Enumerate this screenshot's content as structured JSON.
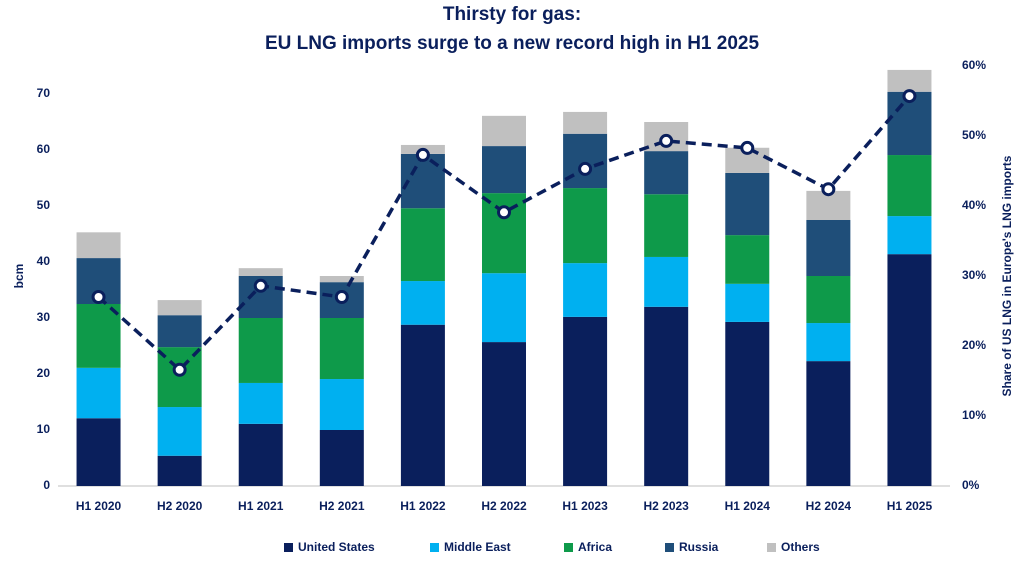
{
  "chart_data": {
    "type": "stacked_bar_line",
    "title": "Thirsty for gas:",
    "subtitle": "EU LNG imports surge to a new record high in H1 2025",
    "y_label": "bcm",
    "y2_label": "Share of US LNG in Europe's LNG imports",
    "categories": [
      "H1 2020",
      "H2 2020",
      "H1 2021",
      "H2 2021",
      "H1 2022",
      "H2 2022",
      "H1 2023",
      "H2 2023",
      "H1 2024",
      "H2 2024",
      "H1 2025"
    ],
    "series": [
      {
        "name": "United States",
        "color": "#0a1f5c",
        "values": [
          12.1,
          5.4,
          11.1,
          10.0,
          28.8,
          25.7,
          30.2,
          32.0,
          29.3,
          22.3,
          41.4
        ]
      },
      {
        "name": "Middle East",
        "color": "#00b0f0",
        "values": [
          9.0,
          8.7,
          7.3,
          9.1,
          7.8,
          12.3,
          9.6,
          8.9,
          6.8,
          6.8,
          6.8
        ]
      },
      {
        "name": "Africa",
        "color": "#0e9a4a",
        "values": [
          11.4,
          10.7,
          11.6,
          10.9,
          13.0,
          14.3,
          13.4,
          11.2,
          8.7,
          8.4,
          10.9
        ]
      },
      {
        "name": "Russia",
        "color": "#1f4e79",
        "values": [
          8.2,
          5.7,
          7.5,
          6.4,
          9.7,
          8.4,
          9.7,
          7.7,
          11.1,
          10.0,
          11.3
        ]
      },
      {
        "name": "Others",
        "color": "#c0c0c0",
        "values": [
          4.6,
          2.7,
          1.4,
          1.1,
          1.6,
          5.4,
          3.9,
          5.2,
          4.5,
          5.2,
          3.9
        ]
      }
    ],
    "line": {
      "color": "#0a1f5c",
      "axis": "y2",
      "values": [
        27.0,
        16.6,
        28.6,
        27.0,
        47.3,
        39.1,
        45.3,
        49.3,
        48.3,
        42.4,
        55.7
      ]
    },
    "ylim": [
      0,
      75
    ],
    "yticks": [
      0,
      10,
      20,
      30,
      40,
      50,
      60,
      70
    ],
    "y2lim": [
      0,
      60
    ],
    "y2ticks": [
      {
        "value": 0,
        "label": "0%"
      },
      {
        "value": 10,
        "label": "10%"
      },
      {
        "value": 20,
        "label": "20%"
      },
      {
        "value": 30,
        "label": "30%"
      },
      {
        "value": 40,
        "label": "40%"
      },
      {
        "value": 50,
        "label": "50%"
      },
      {
        "value": 60,
        "label": "60%"
      }
    ],
    "grid": false,
    "legend": "bottom"
  }
}
